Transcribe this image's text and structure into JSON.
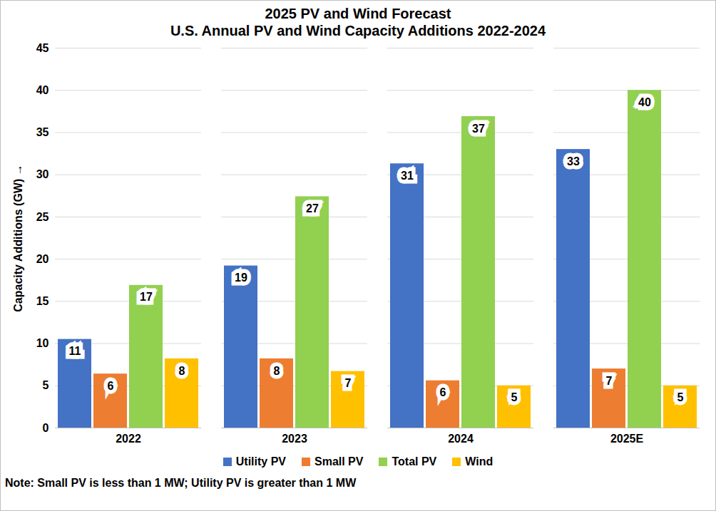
{
  "chart_data": {
    "type": "bar",
    "title": "2025 PV and Wind Forecast",
    "subtitle": "U.S. Annual PV and Wind Capacity Additions 2022-2024",
    "y_label": "Capacity Additions (GW)",
    "annotations": [
      "Note: Small PV is less than 1 MW; Utility PV is greater than 1 MW"
    ],
    "categories": [
      "2022",
      "2023",
      "2024",
      "2025E"
    ],
    "series": [
      {
        "name": "Utility PV",
        "color": "#4472C4",
        "values": [
          10.5,
          19.2,
          31.3,
          33
        ],
        "value_labels": [
          "11",
          "19",
          "31",
          "33"
        ]
      },
      {
        "name": "Small PV",
        "color": "#ED7D31",
        "values": [
          6.4,
          8.2,
          5.6,
          7
        ],
        "value_labels": [
          "6",
          "8",
          "6",
          "7"
        ]
      },
      {
        "name": "Total PV",
        "color": "#92D050",
        "values": [
          16.9,
          27.4,
          36.9,
          40
        ],
        "value_labels": [
          "17",
          "27",
          "37",
          "40"
        ]
      },
      {
        "name": "Wind",
        "color": "#FFC000",
        "values": [
          8.2,
          6.7,
          5,
          5
        ],
        "value_labels": [
          "8",
          "7",
          "5",
          "5"
        ]
      }
    ],
    "ylim": [
      0,
      45
    ],
    "yticks": [
      0,
      5,
      10,
      15,
      20,
      25,
      30,
      35,
      40,
      45
    ],
    "grid": true,
    "data_labels": true,
    "legend": "bottom"
  }
}
